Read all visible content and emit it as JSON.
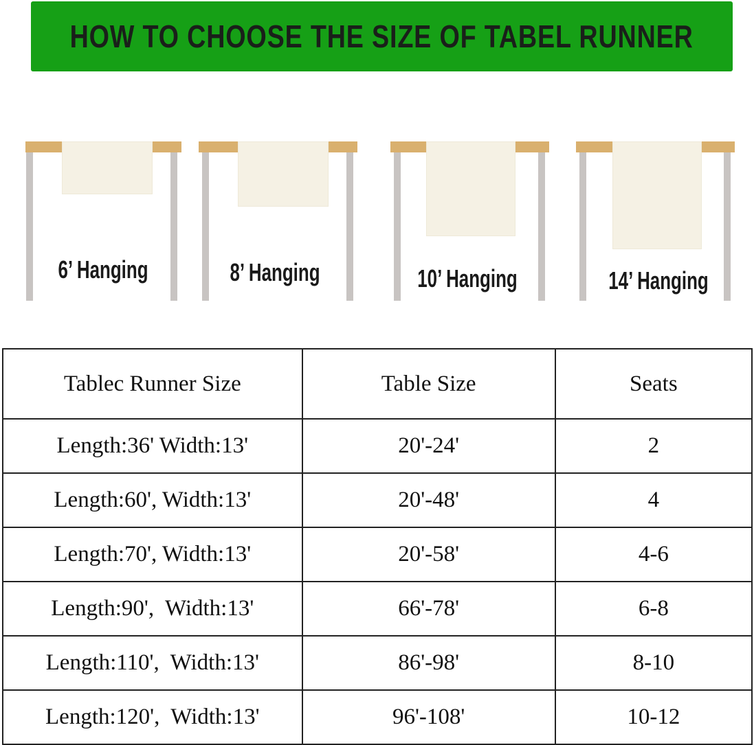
{
  "title": "HOW TO CHOOSE THE SIZE OF TABEL RUNNER",
  "colors": {
    "banner": "#16a016",
    "tabletop": "#d9b06e",
    "legs": "#c8c4c2",
    "runner": "#f5f1e4"
  },
  "illustrations": [
    {
      "label": "6’ Hanging"
    },
    {
      "label": "8’ Hanging"
    },
    {
      "label": "10’ Hanging"
    },
    {
      "label": "14’ Hanging"
    }
  ],
  "table": {
    "headers": [
      "Tablec Runner Size",
      "Table Size",
      "Seats"
    ],
    "rows": [
      [
        "Length:36' Width:13'",
        "20'-24'",
        "2"
      ],
      [
        "Length:60', Width:13'",
        "20'-48'",
        "4"
      ],
      [
        "Length:70', Width:13'",
        "20'-58'",
        "4-6"
      ],
      [
        "Length:90',  Width:13'",
        "66'-78'",
        "6-8"
      ],
      [
        "Length:110',  Width:13'",
        "86'-98'",
        "8-10"
      ],
      [
        "Length:120',  Width:13'",
        "96'-108'",
        "10-12"
      ]
    ]
  }
}
